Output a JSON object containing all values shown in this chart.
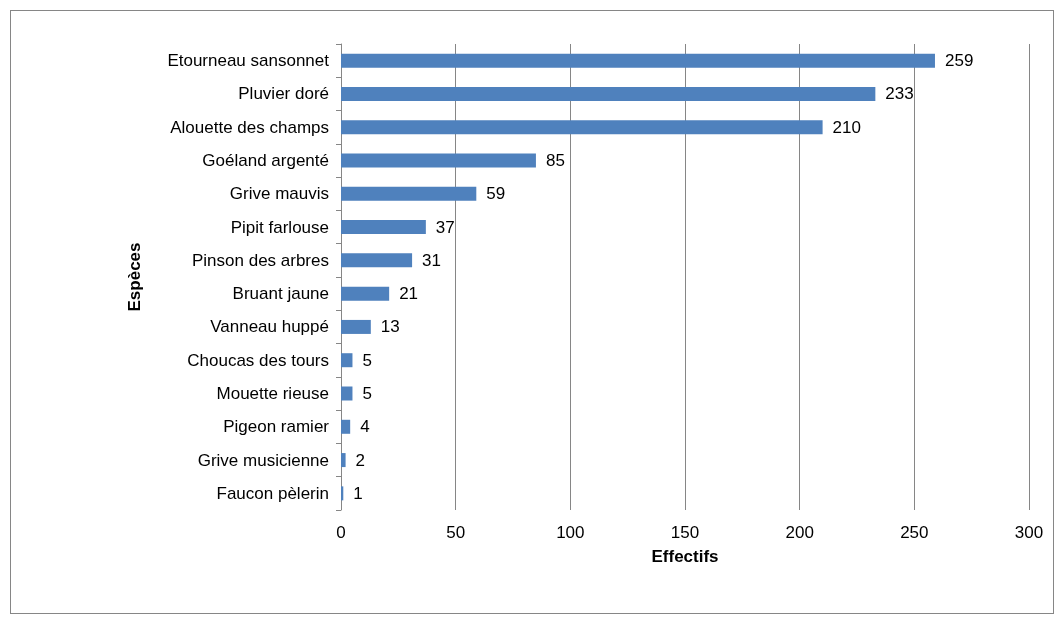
{
  "chart_data": {
    "type": "bar",
    "orientation": "horizontal",
    "xlabel": "Effectifs",
    "ylabel": "Espèces",
    "categories": [
      "Etourneau sansonnet",
      "Pluvier doré",
      "Alouette des champs",
      "Goéland argenté",
      "Grive mauvis",
      "Pipit farlouse",
      "Pinson des arbres",
      "Bruant jaune",
      "Vanneau huppé",
      "Choucas des tours",
      "Mouette rieuse",
      "Pigeon ramier",
      "Grive musicienne",
      "Faucon pèlerin"
    ],
    "values": [
      259,
      233,
      210,
      85,
      59,
      37,
      31,
      21,
      13,
      5,
      5,
      4,
      2,
      1
    ],
    "color": "#4f81bd",
    "xlim": [
      0,
      300
    ],
    "xticks": [
      0,
      50,
      100,
      150,
      200,
      250,
      300
    ],
    "grid": "x",
    "data_labels": true
  }
}
